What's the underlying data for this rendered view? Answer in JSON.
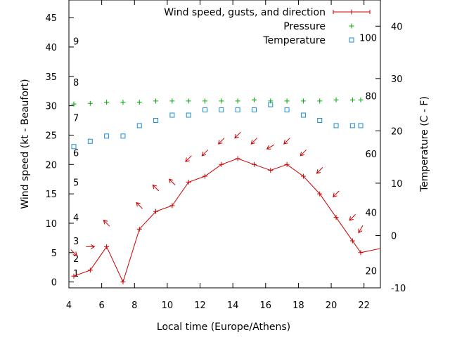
{
  "chart_data": {
    "type": "line",
    "xlabel": "Local time (Europe/Athens)",
    "ylabel": "Wind speed (kt - Beaufort)",
    "y2label": "Temperature (C - F)",
    "xlim": [
      4,
      23
    ],
    "ylim": [
      -1,
      48
    ],
    "y2lim": [
      -10,
      45
    ],
    "x_ticks": [
      4,
      6,
      8,
      10,
      12,
      14,
      16,
      18,
      20,
      22
    ],
    "y_ticks": [
      0,
      5,
      10,
      15,
      20,
      25,
      30,
      35,
      40,
      45
    ],
    "y2_ticks": [
      -10,
      0,
      10,
      20,
      30,
      40
    ],
    "beaufort_labels": [
      {
        "text": "1",
        "kt": 1.5
      },
      {
        "text": "2",
        "kt": 4
      },
      {
        "text": "3",
        "kt": 7
      },
      {
        "text": "4",
        "kt": 11
      },
      {
        "text": "5",
        "kt": 17
      },
      {
        "text": "6",
        "kt": 22
      },
      {
        "text": "7",
        "kt": 28
      },
      {
        "text": "8",
        "kt": 34
      },
      {
        "text": "9",
        "kt": 41
      }
    ],
    "fahrenheit_labels": [
      {
        "text": "20",
        "c": -6.7
      },
      {
        "text": "40",
        "c": 4.4
      },
      {
        "text": "60",
        "c": 15.6
      },
      {
        "text": "80",
        "c": 26.7
      },
      {
        "text": "100",
        "c": 37.8
      }
    ],
    "legend_position": "top-right",
    "colors": {
      "wind": "#cc0000",
      "pressure": "#00aa00",
      "temperature": "#1a8bd8"
    },
    "series": [
      {
        "name": "Wind speed, gusts, and direction",
        "axis": "y",
        "x": [
          4.3,
          5.3,
          6.3,
          7.3,
          8.3,
          9.3,
          10.3,
          11.3,
          12.3,
          13.3,
          14.3,
          15.3,
          16.3,
          17.3,
          18.3,
          19.3,
          20.3,
          21.3,
          21.8,
          23
        ],
        "y": [
          1,
          2,
          6,
          0,
          9,
          12,
          13,
          17,
          18,
          20,
          21,
          20,
          19,
          20,
          18,
          15,
          11,
          7,
          5,
          5.7
        ]
      },
      {
        "name": "Pressure",
        "axis": "y",
        "x": [
          4.3,
          5.3,
          6.3,
          7.3,
          8.3,
          9.3,
          10.3,
          11.3,
          12.3,
          13.3,
          14.3,
          15.3,
          16.3,
          17.3,
          18.3,
          19.3,
          20.3,
          21.3,
          21.8
        ],
        "y": [
          30.3,
          30.4,
          30.6,
          30.6,
          30.6,
          30.8,
          30.8,
          30.8,
          30.8,
          30.8,
          30.8,
          31.0,
          30.8,
          30.8,
          30.8,
          30.8,
          31.0,
          31.0,
          31.0
        ]
      },
      {
        "name": "Temperature",
        "axis": "y2",
        "x": [
          4.3,
          5.3,
          6.3,
          7.3,
          8.3,
          9.3,
          10.3,
          11.3,
          12.3,
          13.3,
          14.3,
          15.3,
          16.3,
          17.3,
          18.3,
          19.3,
          20.3,
          21.3,
          21.8
        ],
        "y": [
          17,
          18,
          19,
          19,
          21,
          22,
          23,
          23,
          24,
          24,
          24,
          24,
          25,
          24,
          23,
          22,
          21,
          21,
          21
        ]
      }
    ],
    "wind_direction_arrows": {
      "x": [
        4.3,
        5.3,
        6.3,
        8.3,
        9.3,
        10.3,
        11.3,
        12.3,
        13.3,
        14.3,
        15.3,
        16.3,
        17.3,
        18.3,
        19.3,
        20.3,
        21.3,
        21.8
      ],
      "y": [
        5,
        6,
        10,
        13,
        16,
        17,
        21,
        22,
        24,
        25,
        24,
        23,
        24,
        22,
        19,
        15,
        11,
        9
      ],
      "direction_deg": [
        45,
        90,
        225,
        225,
        225,
        225,
        315,
        315,
        315,
        315,
        315,
        300,
        315,
        315,
        315,
        315,
        315,
        330
      ]
    }
  }
}
